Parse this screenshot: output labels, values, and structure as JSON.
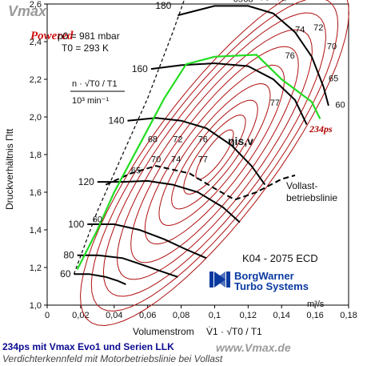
{
  "watermarks": {
    "top": "Vmax",
    "powered": "Powered",
    "footer": "www.Vmax.de"
  },
  "chart_data": {
    "type": "line",
    "title": "Verdichterkennfeld mit Motorbetriebslinie bei Vollast",
    "caption": "234ps mit Vmax Evo1 und Serien LLK",
    "subtitle": "K04 - 2075 ECD",
    "brand": [
      "BorgWarner",
      "Turbo Systems"
    ],
    "xlabel": "Volumenstrom",
    "xlabel_formula": "V̇1 · √T0 / T1",
    "xunit": "m³/s",
    "ylabel": "Druckverhältnis Πtt",
    "xlim": [
      0,
      0.18
    ],
    "ylim": [
      1.0,
      2.6
    ],
    "x_ticks": [
      "0",
      "0,02",
      "0,04",
      "0,06",
      "0,08",
      "0,1",
      "0,12",
      "0,14",
      "0,16",
      "0,18"
    ],
    "y_ticks": [
      "1,0",
      "1,2",
      "1,4",
      "1,6",
      "1,8",
      "2,0",
      "2,2",
      "2,4",
      "2,6"
    ],
    "conditions": [
      "p0 = 981 mbar",
      "T0 = 293 K"
    ],
    "speed_label": "n · √T0 / T1",
    "speed_unit": "10³ min⁻¹",
    "speed_lines": [
      {
        "label": "60",
        "points": [
          [
            0.016,
            1.165
          ],
          [
            0.025,
            1.165
          ],
          [
            0.035,
            1.15
          ],
          [
            0.042,
            1.13
          ],
          [
            0.047,
            1.11
          ]
        ]
      },
      {
        "label": "80",
        "points": [
          [
            0.018,
            1.265
          ],
          [
            0.03,
            1.265
          ],
          [
            0.045,
            1.25
          ],
          [
            0.055,
            1.22
          ],
          [
            0.068,
            1.18
          ],
          [
            0.078,
            1.15
          ]
        ]
      },
      {
        "label": "100",
        "points": [
          [
            0.024,
            1.43
          ],
          [
            0.04,
            1.43
          ],
          [
            0.055,
            1.4
          ],
          [
            0.07,
            1.35
          ],
          [
            0.082,
            1.3
          ],
          [
            0.095,
            1.25
          ]
        ]
      },
      {
        "label": "120",
        "points": [
          [
            0.03,
            1.655
          ],
          [
            0.045,
            1.655
          ],
          [
            0.06,
            1.66
          ],
          [
            0.075,
            1.64
          ],
          [
            0.09,
            1.6
          ],
          [
            0.105,
            1.52
          ],
          [
            0.115,
            1.44
          ]
        ]
      },
      {
        "label": "140",
        "points": [
          [
            0.048,
            1.98
          ],
          [
            0.065,
            1.995
          ],
          [
            0.08,
            1.98
          ],
          [
            0.095,
            1.94
          ],
          [
            0.11,
            1.85
          ],
          [
            0.122,
            1.74
          ],
          [
            0.13,
            1.64
          ]
        ]
      },
      {
        "label": "160",
        "points": [
          [
            0.062,
            2.255
          ],
          [
            0.08,
            2.275
          ],
          [
            0.1,
            2.285
          ],
          [
            0.12,
            2.27
          ],
          [
            0.135,
            2.2
          ],
          [
            0.148,
            2.09
          ],
          [
            0.155,
            1.96
          ]
        ]
      },
      {
        "label": "180",
        "points": [
          [
            0.078,
            2.54
          ],
          [
            0.1,
            2.59
          ],
          [
            0.12,
            2.59
          ],
          [
            0.135,
            2.55
          ],
          [
            0.148,
            2.45
          ],
          [
            0.158,
            2.32
          ],
          [
            0.165,
            2.16
          ],
          [
            0.168,
            2.06
          ]
        ]
      }
    ],
    "surge_line": [
      [
        0.016,
        1.165
      ],
      [
        0.03,
        1.5
      ],
      [
        0.045,
        1.8
      ],
      [
        0.06,
        2.1
      ],
      [
        0.075,
        2.45
      ],
      [
        0.083,
        2.65
      ]
    ],
    "efficiency_labels": [
      "60",
      "65",
      "68",
      "70",
      "72",
      "74",
      "76",
      "77"
    ],
    "efficiency_symbol": "ηis,v",
    "series": [
      {
        "name": "Vollast-betriebslinie",
        "style": "dashed",
        "points": [
          [
            0.035,
            1.64
          ],
          [
            0.05,
            1.7
          ],
          [
            0.065,
            1.74
          ],
          [
            0.085,
            1.7
          ],
          [
            0.1,
            1.62
          ],
          [
            0.112,
            1.56
          ],
          [
            0.125,
            1.6
          ],
          [
            0.14,
            1.67
          ],
          [
            0.148,
            1.69
          ]
        ]
      },
      {
        "name": "234ps",
        "style": "green",
        "points": [
          [
            0.018,
            1.19
          ],
          [
            0.03,
            1.4
          ],
          [
            0.04,
            1.6
          ],
          [
            0.055,
            1.85
          ],
          [
            0.07,
            2.1
          ],
          [
            0.083,
            2.28
          ],
          [
            0.1,
            2.32
          ],
          [
            0.125,
            2.33
          ],
          [
            0.14,
            2.2
          ],
          [
            0.158,
            2.08
          ],
          [
            0.163,
            1.99
          ]
        ]
      }
    ]
  }
}
